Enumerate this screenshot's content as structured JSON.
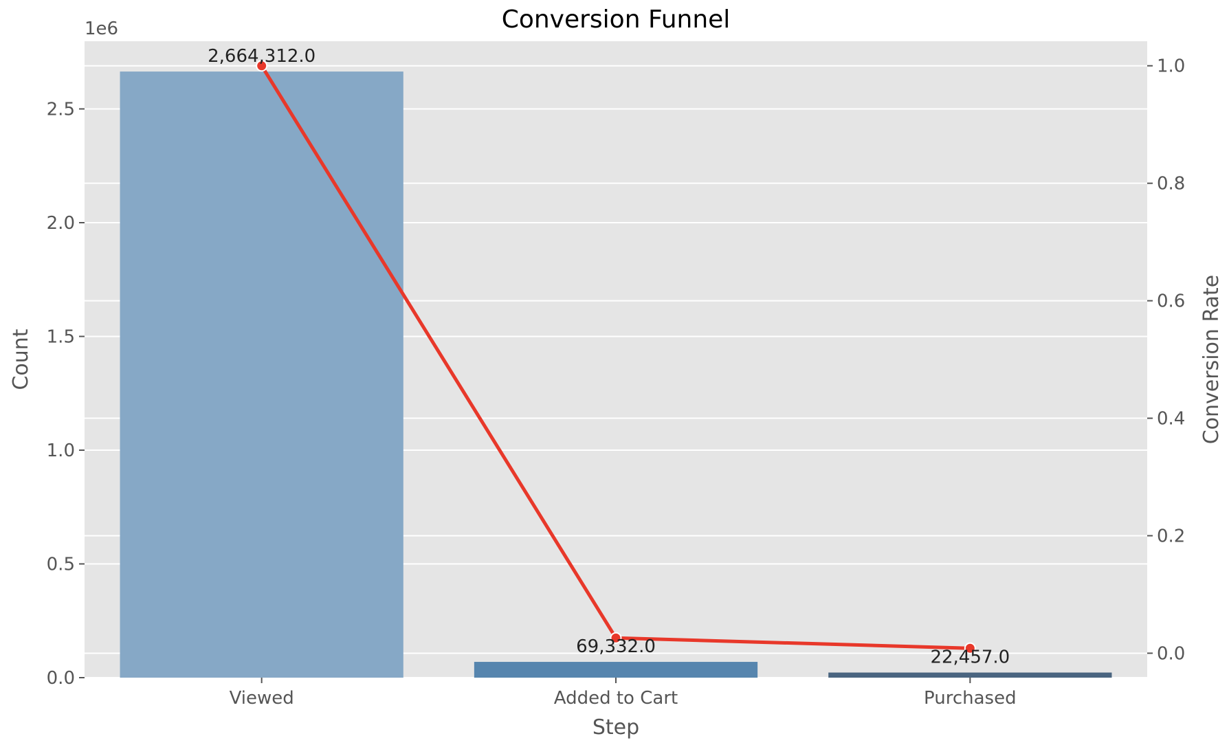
{
  "chart_data": {
    "type": "bar",
    "title": "Conversion Funnel",
    "xlabel": "Step",
    "ylabel": "Count",
    "y2label": "Conversion Rate",
    "offset_text": "1e6",
    "categories": [
      "Viewed",
      "Added to Cart",
      "Purchased"
    ],
    "values": [
      2664312,
      69332,
      22457
    ],
    "bar_labels": [
      "2,664,312.0",
      "69,332.0",
      "22,457.0"
    ],
    "ylim": [
      0,
      2797527.6
    ],
    "y_ticks": [
      0,
      500000,
      1000000,
      1500000,
      2000000,
      2500000
    ],
    "y_tick_labels": [
      "0.0",
      "0.5",
      "1.0",
      "1.5",
      "2.0",
      "2.5"
    ],
    "secondary_series": {
      "type": "line",
      "values": [
        1.0,
        0.026,
        0.0084
      ],
      "color": "#e8382a"
    },
    "y2lim": [
      -0.0416,
      1.0418
    ],
    "y2_ticks": [
      0,
      0.2,
      0.4,
      0.6,
      0.8,
      1.0
    ],
    "y2_tick_labels": [
      "0.0",
      "0.2",
      "0.4",
      "0.6",
      "0.8",
      "1.0"
    ],
    "bar_colors": [
      "#86a8c6",
      "#5685ae",
      "#4a6580"
    ],
    "background_color": "#e5e5e5",
    "grid": true
  }
}
